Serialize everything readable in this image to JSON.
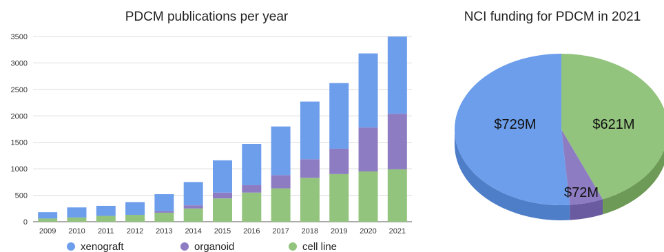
{
  "chart_data": [
    {
      "type": "bar",
      "stacked": true,
      "title": "PDCM publications per year",
      "xlabel": "",
      "ylabel": "",
      "ylim": [
        0,
        3500
      ],
      "yticks": [
        "0",
        "500",
        "1000",
        "1500",
        "2000",
        "2500",
        "3000",
        "3500"
      ],
      "grid": true,
      "legend_position": "bottom",
      "categories": [
        "2009",
        "2010",
        "2011",
        "2012",
        "2013",
        "2014",
        "2015",
        "2016",
        "2017",
        "2018",
        "2019",
        "2020",
        "2021"
      ],
      "series": [
        {
          "name": "cell line",
          "color": "#93c47d",
          "values": [
            60,
            80,
            110,
            130,
            170,
            250,
            440,
            550,
            630,
            830,
            900,
            950,
            990
          ]
        },
        {
          "name": "organoid",
          "color": "#8e7cc3",
          "values": [
            0,
            0,
            0,
            0,
            30,
            60,
            110,
            140,
            250,
            350,
            480,
            830,
            1050
          ]
        },
        {
          "name": "xenograft",
          "color": "#6d9eeb",
          "values": [
            120,
            190,
            190,
            240,
            320,
            440,
            610,
            780,
            920,
            1090,
            1240,
            1400,
            1460
          ]
        }
      ],
      "legend_order": [
        "xenograft",
        "organoid",
        "cell line"
      ]
    },
    {
      "type": "pie",
      "title": "NCI funding for PDCM in 2021",
      "three_d": true,
      "slices": [
        {
          "label": "$621M",
          "value": 621,
          "color": "#93c47d",
          "side_color": "#6e9a58"
        },
        {
          "label": "$72M",
          "value": 72,
          "color": "#8e7cc3",
          "side_color": "#6a5aa0"
        },
        {
          "label": "$729M",
          "value": 729,
          "color": "#6d9eeb",
          "side_color": "#4f7ec9"
        }
      ]
    }
  ]
}
